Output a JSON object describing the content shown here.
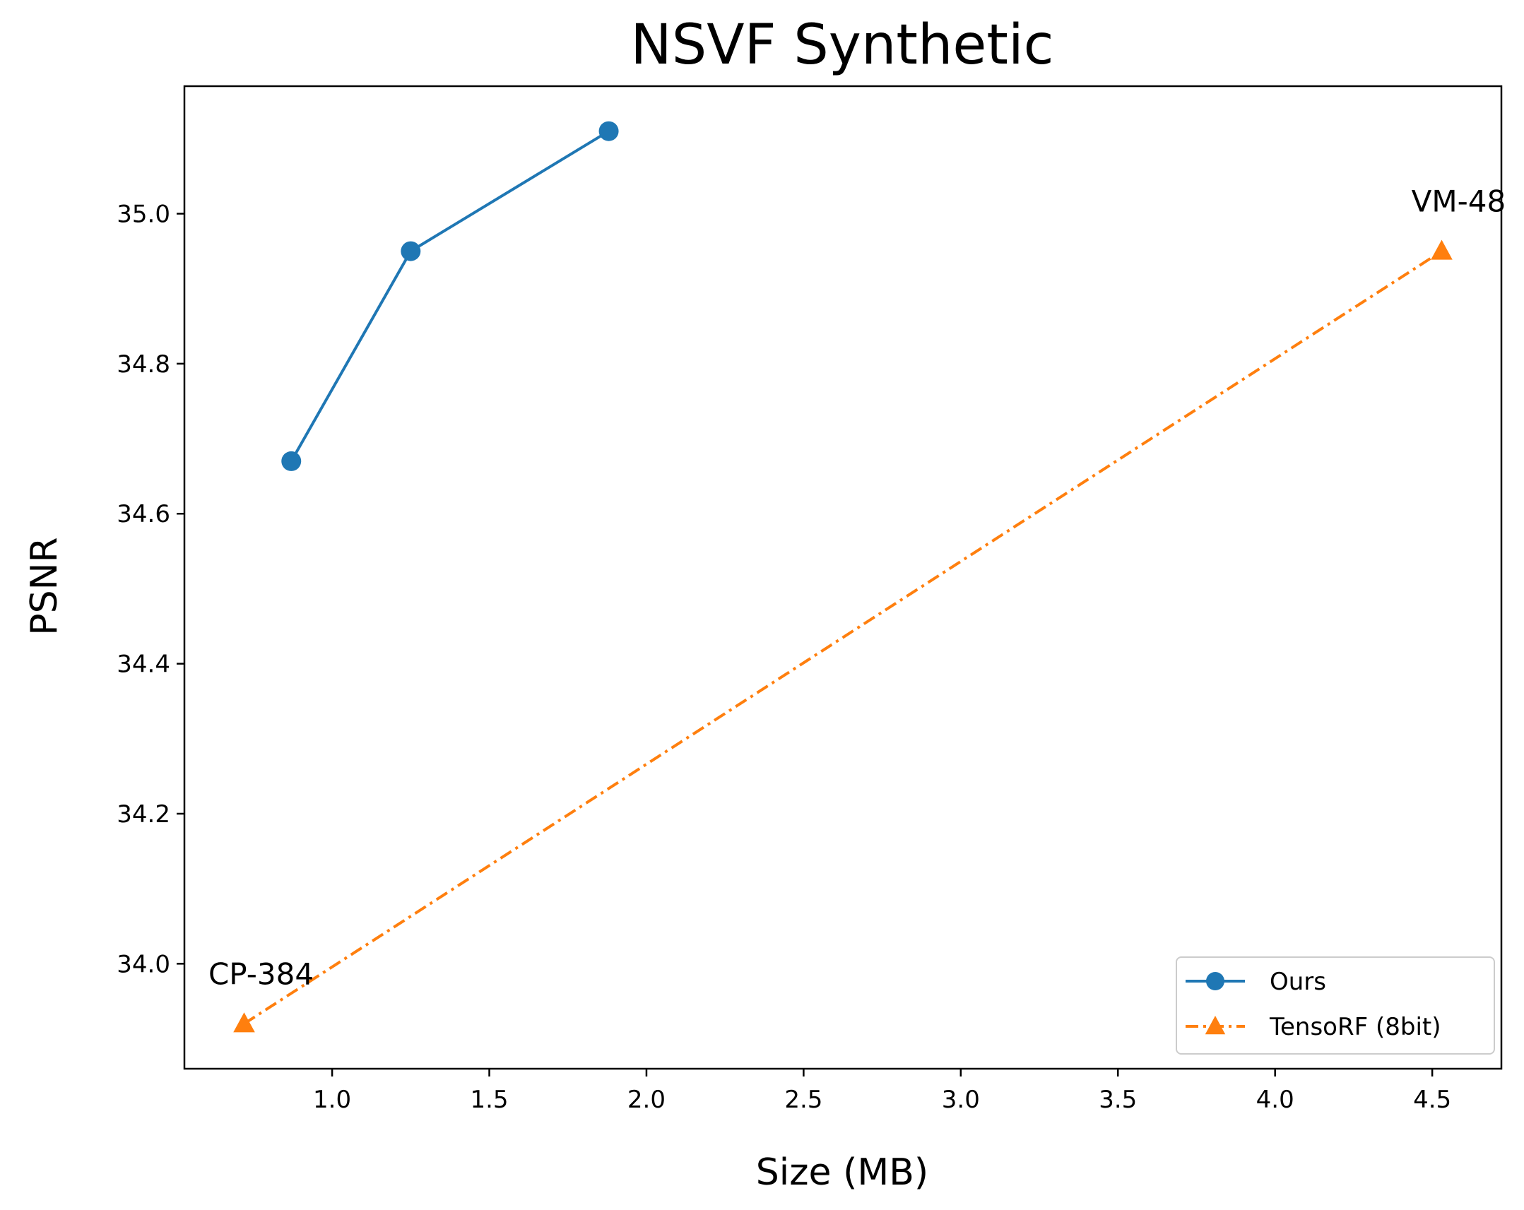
{
  "chart_data": {
    "type": "line",
    "title": "NSVF Synthetic",
    "xlabel": "Size (MB)",
    "ylabel": "PSNR",
    "xlim": [
      0.53,
      4.72
    ],
    "ylim": [
      33.86,
      35.17
    ],
    "xticks": [
      1.0,
      1.5,
      2.0,
      2.5,
      3.0,
      3.5,
      4.0,
      4.5
    ],
    "xtick_labels": [
      "1.0",
      "1.5",
      "2.0",
      "2.5",
      "3.0",
      "3.5",
      "4.0",
      "4.5"
    ],
    "yticks": [
      34.0,
      34.2,
      34.4,
      34.6,
      34.8,
      35.0
    ],
    "ytick_labels": [
      "34.0",
      "34.2",
      "34.4",
      "34.6",
      "34.8",
      "35.0"
    ],
    "grid": false,
    "legend_position": "lower right",
    "series": [
      {
        "name": "Ours",
        "color": "#1f77b4",
        "line_style": "solid",
        "marker": "circle",
        "x": [
          0.87,
          1.25,
          1.88
        ],
        "y": [
          34.67,
          34.95,
          35.11
        ]
      },
      {
        "name": "TensoRF (8bit)",
        "color": "#ff7f0e",
        "line_style": "dashdot",
        "marker": "triangle",
        "x": [
          0.72,
          4.53
        ],
        "y": [
          33.92,
          34.95
        ]
      }
    ],
    "annotations": [
      {
        "text": "CP-384",
        "x": 0.72,
        "y": 33.92
      },
      {
        "text": "VM-48",
        "x": 4.53,
        "y": 34.95
      }
    ]
  }
}
